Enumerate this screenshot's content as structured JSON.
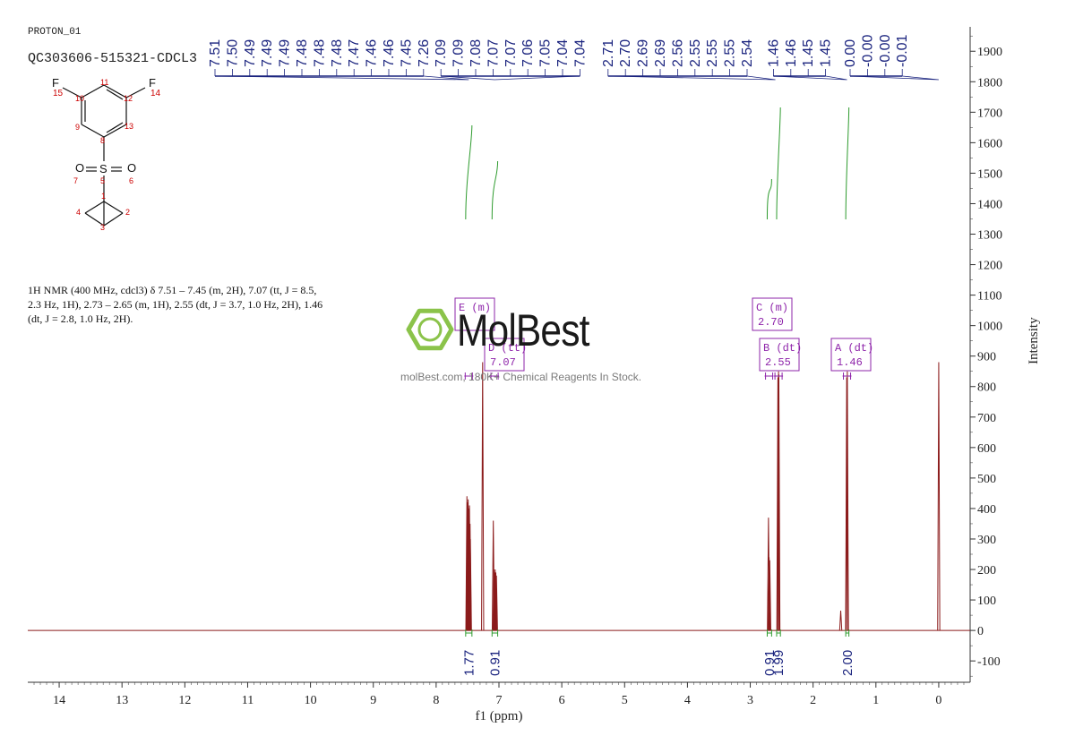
{
  "header": {
    "experiment": "PROTON_01",
    "sample": "QC303606-515321-CDCL3"
  },
  "structure_labels": [
    "F",
    "15",
    "10",
    "11",
    "12",
    "F",
    "14",
    "9",
    "13",
    "8",
    "O",
    "S",
    "O",
    "7",
    "5",
    "6",
    "1",
    "4",
    "2",
    "3"
  ],
  "nmr_description": "1H NMR (400 MHz, cdcl3) δ 7.51 – 7.45 (m, 2H), 7.07 (tt, J = 8.5, 2.3 Hz, 1H), 2.73 – 2.65 (m, 1H), 2.55 (dt, J = 3.7, 1.0 Hz, 2H), 1.46 (dt, J = 2.8, 1.0 Hz, 2H).",
  "watermark": {
    "brand": "MolBest",
    "tagline": "molBest.com, 180K+ Chemical Reagents In Stock."
  },
  "colors": {
    "spectrum": "#8b1a1a",
    "peak_labels": "#1a237e",
    "integrals": "#2e9b2e",
    "multiplet_boxes": "#8e24aa",
    "axis": "#333333",
    "logo": "#8bc34a"
  },
  "chart_data": {
    "type": "line",
    "xlabel": "f1 (ppm)",
    "ylabel": "Intensity",
    "xlim": [
      14.5,
      -0.5
    ],
    "ylim": [
      -170,
      1980
    ],
    "x_ticks": [
      14,
      13,
      12,
      11,
      10,
      9,
      8,
      7,
      6,
      5,
      4,
      3,
      2,
      1,
      0
    ],
    "y_ticks": [
      -100,
      0,
      100,
      200,
      300,
      400,
      500,
      600,
      700,
      800,
      900,
      1000,
      1100,
      1200,
      1300,
      1400,
      1500,
      1600,
      1700,
      1800,
      1900
    ],
    "peaks": [
      {
        "ppm": 7.51,
        "height": 440
      },
      {
        "ppm": 7.5,
        "height": 420
      },
      {
        "ppm": 7.49,
        "height": 430
      },
      {
        "ppm": 7.485,
        "height": 400
      },
      {
        "ppm": 7.48,
        "height": 380
      },
      {
        "ppm": 7.47,
        "height": 410
      },
      {
        "ppm": 7.46,
        "height": 350
      },
      {
        "ppm": 7.455,
        "height": 300
      },
      {
        "ppm": 7.26,
        "height": 880
      },
      {
        "ppm": 7.09,
        "height": 360
      },
      {
        "ppm": 7.08,
        "height": 200
      },
      {
        "ppm": 7.07,
        "height": 190
      },
      {
        "ppm": 7.06,
        "height": 200
      },
      {
        "ppm": 7.05,
        "height": 190
      },
      {
        "ppm": 7.04,
        "height": 180
      },
      {
        "ppm": 2.71,
        "height": 370
      },
      {
        "ppm": 2.7,
        "height": 240
      },
      {
        "ppm": 2.69,
        "height": 230
      },
      {
        "ppm": 2.56,
        "height": 830
      },
      {
        "ppm": 2.55,
        "height": 850
      },
      {
        "ppm": 2.545,
        "height": 840
      },
      {
        "ppm": 1.56,
        "height": 65
      },
      {
        "ppm": 1.465,
        "height": 830
      },
      {
        "ppm": 1.455,
        "height": 850
      },
      {
        "ppm": 0.0,
        "height": 880
      }
    ],
    "peak_labels": [
      "7.51",
      "7.50",
      "7.49",
      "7.49",
      "7.49",
      "7.48",
      "7.48",
      "7.48",
      "7.47",
      "7.46",
      "7.46",
      "7.45",
      "7.26",
      "7.09",
      "7.09",
      "7.08",
      "7.07",
      "7.07",
      "7.06",
      "7.05",
      "7.04",
      "7.04",
      "2.71",
      "2.70",
      "2.69",
      "2.69",
      "2.56",
      "2.55",
      "2.55",
      "2.55",
      "2.54",
      "1.46",
      "1.46",
      "1.45",
      "1.45",
      "0.00",
      "-0.00",
      "-0.00",
      "-0.01"
    ],
    "peak_label_groups": [
      {
        "start": 0,
        "end": 12,
        "ppm": 7.48
      },
      {
        "start": 13,
        "end": 21,
        "ppm": 7.07
      },
      {
        "start": 22,
        "end": 30,
        "ppm": 2.6
      },
      {
        "start": 31,
        "end": 34,
        "ppm": 1.46
      },
      {
        "start": 35,
        "end": 38,
        "ppm": 0.0
      }
    ],
    "multiplets": [
      {
        "letter": "E",
        "type": "(m)",
        "shift": "",
        "ppm": 7.48
      },
      {
        "letter": "D",
        "type": "(tt)",
        "shift": "7.07",
        "ppm": 7.07
      },
      {
        "letter": "C",
        "type": "(m)",
        "shift": "2.70",
        "ppm": 2.7
      },
      {
        "letter": "B",
        "type": "(dt)",
        "shift": "2.55",
        "ppm": 2.55
      },
      {
        "letter": "A",
        "type": "(dt)",
        "shift": "1.46",
        "ppm": 1.46
      }
    ],
    "integrals": [
      {
        "label": "1.77",
        "from": 7.53,
        "to": 7.43
      },
      {
        "label": "0.91",
        "from": 7.11,
        "to": 7.02
      },
      {
        "label": "0.91",
        "from": 2.73,
        "to": 2.66
      },
      {
        "label": "1.99",
        "from": 2.58,
        "to": 2.52
      },
      {
        "label": "2.00",
        "from": 1.48,
        "to": 1.43
      }
    ],
    "grid": false
  }
}
